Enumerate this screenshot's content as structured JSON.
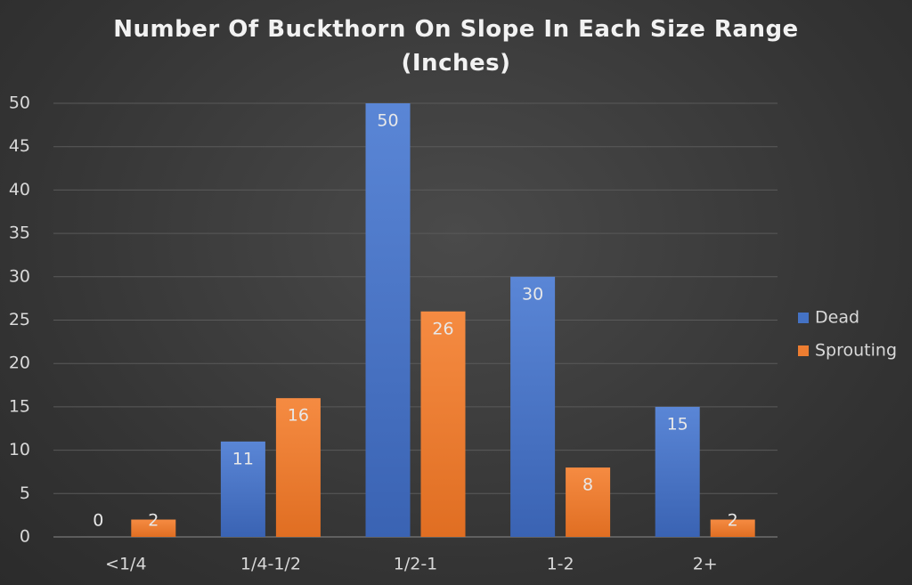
{
  "chart_data": {
    "type": "bar",
    "title": "Number Of Buckthorn On Slope In Each Size Range (Inches)",
    "categories": [
      "<1/4",
      "1/4-1/2",
      "1/2-1",
      "1-2",
      "2+"
    ],
    "series": [
      {
        "name": "Dead",
        "color": "#4472c4",
        "values": [
          0,
          11,
          50,
          30,
          15
        ]
      },
      {
        "name": "Sprouting",
        "color": "#ed7d31",
        "values": [
          2,
          16,
          26,
          8,
          2
        ]
      }
    ],
    "ylim": [
      0,
      50
    ],
    "yticks": [
      0,
      5,
      10,
      15,
      20,
      25,
      30,
      35,
      40,
      45,
      50
    ],
    "grid": true,
    "legend": "right",
    "data_labels": true
  }
}
